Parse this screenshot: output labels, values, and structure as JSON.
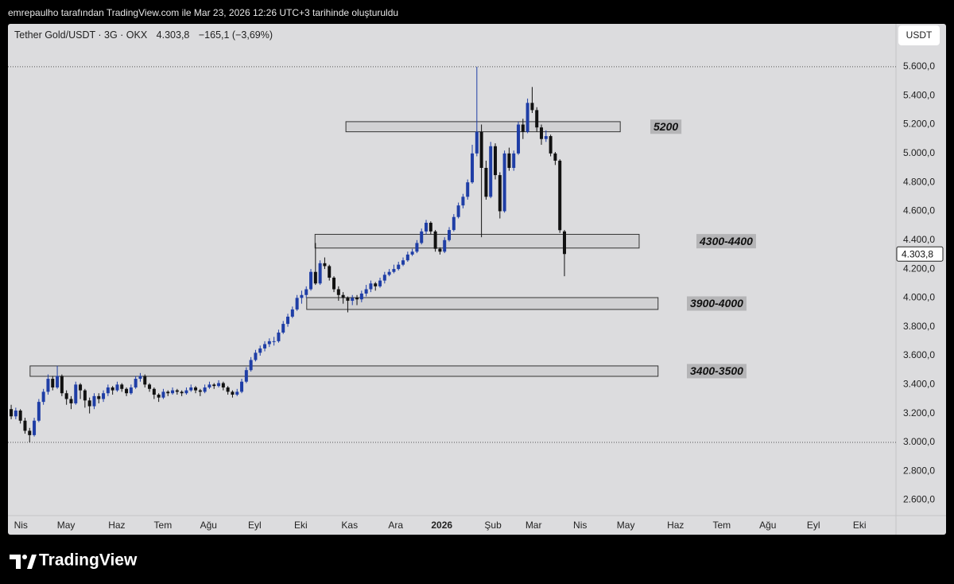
{
  "header": "emrepaulho tarafından TradingView.com ile Mar 23, 2026 12:26 UTC+3 tarihinde oluşturuldu",
  "brand": "TradingView",
  "chart_data": {
    "type": "candlestick",
    "title": "Tether Gold/USDT · 3G · OKX",
    "last_label": "4.303,8",
    "change_label": "−165,1 (−3,69%)",
    "currency": "USDT",
    "up_color": "#1f3ea6",
    "down_color": "#111111",
    "xlim": [
      -0.7,
      191.9
    ],
    "ylim": [
      2493,
      5897
    ],
    "yticks": [
      {
        "value": 2600,
        "label": "2.600,0"
      },
      {
        "value": 2800,
        "label": "2.800,0"
      },
      {
        "value": 3000,
        "label": "3.000,0"
      },
      {
        "value": 3200,
        "label": "3.200,0"
      },
      {
        "value": 3400,
        "label": "3.400,0"
      },
      {
        "value": 3600,
        "label": "3.600,0"
      },
      {
        "value": 3800,
        "label": "3.800,0"
      },
      {
        "value": 4000,
        "label": "4.000,0"
      },
      {
        "value": 4200,
        "label": "4.200,0"
      },
      {
        "value": 4400,
        "label": "4.400,0"
      },
      {
        "value": 4600,
        "label": "4.600,0"
      },
      {
        "value": 4800,
        "label": "4.800,0"
      },
      {
        "value": 5000,
        "label": "5.000,0"
      },
      {
        "value": 5200,
        "label": "5.200,0"
      },
      {
        "value": 5400,
        "label": "5.400,0"
      },
      {
        "value": 5600,
        "label": "5.600,0"
      }
    ],
    "xticks": [
      {
        "value": 2.1,
        "label": "Nis"
      },
      {
        "value": 11.9,
        "label": "May"
      },
      {
        "value": 22.9,
        "label": "Haz"
      },
      {
        "value": 32.9,
        "label": "Tem"
      },
      {
        "value": 42.8,
        "label": "Ağu"
      },
      {
        "value": 52.8,
        "label": "Eyl"
      },
      {
        "value": 62.8,
        "label": "Eki"
      },
      {
        "value": 73.4,
        "label": "Kas"
      },
      {
        "value": 83.4,
        "label": "Ara"
      },
      {
        "value": 93.4,
        "label": "2026"
      },
      {
        "value": 104.5,
        "label": "Şub"
      },
      {
        "value": 113.3,
        "label": "Mar"
      },
      {
        "value": 123.4,
        "label": "Nis"
      },
      {
        "value": 133.3,
        "label": "May"
      },
      {
        "value": 144.1,
        "label": "Haz"
      },
      {
        "value": 154.1,
        "label": "Tem"
      },
      {
        "value": 164.1,
        "label": "Ağu"
      },
      {
        "value": 174,
        "label": "Eyl"
      },
      {
        "value": 184,
        "label": "Eki"
      }
    ],
    "zones": [
      {
        "label": "5200",
        "top": 5220,
        "bottom": 5150,
        "start": 72.6,
        "end": 132.1
      },
      {
        "label": "4300-4400",
        "top": 4440,
        "bottom": 4345,
        "start": 65.9,
        "end": 136.2
      },
      {
        "label": "3900-4000",
        "top": 4002,
        "bottom": 3920,
        "start": 64.1,
        "end": 140.3
      },
      {
        "label": "3400-3500",
        "top": 3529,
        "bottom": 3457,
        "start": 4.1,
        "end": 140.3
      }
    ],
    "candles": [
      [
        3230,
        3260,
        3160,
        3180
      ],
      [
        3180,
        3240,
        3160,
        3220
      ],
      [
        3220,
        3230,
        3130,
        3150
      ],
      [
        3150,
        3170,
        3060,
        3080
      ],
      [
        3080,
        3100,
        3000,
        3050
      ],
      [
        3050,
        3170,
        3040,
        3150
      ],
      [
        3150,
        3300,
        3140,
        3280
      ],
      [
        3280,
        3370,
        3260,
        3350
      ],
      [
        3350,
        3470,
        3330,
        3440
      ],
      [
        3440,
        3460,
        3360,
        3380
      ],
      [
        3380,
        3530,
        3370,
        3460
      ],
      [
        3460,
        3470,
        3320,
        3340
      ],
      [
        3340,
        3360,
        3260,
        3300
      ],
      [
        3300,
        3320,
        3230,
        3270
      ],
      [
        3270,
        3420,
        3260,
        3400
      ],
      [
        3400,
        3410,
        3300,
        3360
      ],
      [
        3360,
        3370,
        3240,
        3290
      ],
      [
        3290,
        3310,
        3200,
        3250
      ],
      [
        3250,
        3340,
        3230,
        3320
      ],
      [
        3320,
        3340,
        3270,
        3300
      ],
      [
        3300,
        3360,
        3280,
        3340
      ],
      [
        3340,
        3400,
        3320,
        3380
      ],
      [
        3380,
        3390,
        3330,
        3360
      ],
      [
        3360,
        3420,
        3350,
        3400
      ],
      [
        3400,
        3410,
        3350,
        3370
      ],
      [
        3370,
        3380,
        3320,
        3340
      ],
      [
        3340,
        3400,
        3330,
        3380
      ],
      [
        3380,
        3460,
        3370,
        3440
      ],
      [
        3440,
        3480,
        3420,
        3460
      ],
      [
        3460,
        3470,
        3380,
        3400
      ],
      [
        3400,
        3410,
        3350,
        3370
      ],
      [
        3370,
        3380,
        3300,
        3330
      ],
      [
        3330,
        3340,
        3280,
        3310
      ],
      [
        3310,
        3370,
        3300,
        3350
      ],
      [
        3350,
        3360,
        3320,
        3340
      ],
      [
        3340,
        3380,
        3330,
        3360
      ],
      [
        3360,
        3370,
        3330,
        3350
      ],
      [
        3350,
        3360,
        3320,
        3340
      ],
      [
        3340,
        3380,
        3330,
        3360
      ],
      [
        3360,
        3400,
        3350,
        3380
      ],
      [
        3380,
        3390,
        3340,
        3360
      ],
      [
        3360,
        3370,
        3320,
        3350
      ],
      [
        3350,
        3400,
        3340,
        3380
      ],
      [
        3380,
        3420,
        3370,
        3400
      ],
      [
        3400,
        3410,
        3370,
        3390
      ],
      [
        3390,
        3430,
        3380,
        3410
      ],
      [
        3410,
        3420,
        3360,
        3380
      ],
      [
        3380,
        3390,
        3330,
        3350
      ],
      [
        3350,
        3360,
        3310,
        3330
      ],
      [
        3330,
        3370,
        3320,
        3350
      ],
      [
        3350,
        3440,
        3340,
        3420
      ],
      [
        3420,
        3520,
        3410,
        3500
      ],
      [
        3500,
        3590,
        3490,
        3570
      ],
      [
        3570,
        3640,
        3560,
        3620
      ],
      [
        3620,
        3670,
        3600,
        3650
      ],
      [
        3650,
        3700,
        3630,
        3680
      ],
      [
        3680,
        3720,
        3660,
        3700
      ],
      [
        3700,
        3730,
        3670,
        3700
      ],
      [
        3700,
        3780,
        3690,
        3760
      ],
      [
        3760,
        3840,
        3750,
        3820
      ],
      [
        3820,
        3890,
        3800,
        3870
      ],
      [
        3870,
        3940,
        3860,
        3920
      ],
      [
        3920,
        4020,
        3910,
        4000
      ],
      [
        4000,
        4050,
        3960,
        4020
      ],
      [
        4020,
        4080,
        4000,
        4060
      ],
      [
        4060,
        4200,
        4050,
        4180
      ],
      [
        4180,
        4380,
        4090,
        4100
      ],
      [
        4100,
        4260,
        4090,
        4240
      ],
      [
        4240,
        4280,
        4200,
        4220
      ],
      [
        4220,
        4230,
        4120,
        4140
      ],
      [
        4140,
        4150,
        4040,
        4060
      ],
      [
        4060,
        4080,
        3980,
        4020
      ],
      [
        4020,
        4040,
        3960,
        4000
      ],
      [
        4000,
        4010,
        3900,
        3980
      ],
      [
        3980,
        4020,
        3950,
        4000
      ],
      [
        4000,
        4020,
        3950,
        3990
      ],
      [
        3990,
        4050,
        3970,
        4030
      ],
      [
        4030,
        4090,
        4010,
        4060
      ],
      [
        4060,
        4120,
        4040,
        4100
      ],
      [
        4100,
        4110,
        4050,
        4080
      ],
      [
        4080,
        4140,
        4070,
        4120
      ],
      [
        4120,
        4180,
        4100,
        4160
      ],
      [
        4160,
        4200,
        4150,
        4180
      ],
      [
        4180,
        4230,
        4170,
        4200
      ],
      [
        4200,
        4250,
        4190,
        4230
      ],
      [
        4230,
        4280,
        4220,
        4260
      ],
      [
        4260,
        4320,
        4250,
        4300
      ],
      [
        4300,
        4340,
        4290,
        4320
      ],
      [
        4320,
        4400,
        4310,
        4380
      ],
      [
        4380,
        4480,
        4370,
        4460
      ],
      [
        4460,
        4540,
        4440,
        4520
      ],
      [
        4520,
        4530,
        4440,
        4460
      ],
      [
        4460,
        4470,
        4320,
        4340
      ],
      [
        4340,
        4350,
        4300,
        4320
      ],
      [
        4320,
        4420,
        4310,
        4400
      ],
      [
        4400,
        4490,
        4390,
        4470
      ],
      [
        4470,
        4580,
        4460,
        4560
      ],
      [
        4560,
        4660,
        4550,
        4640
      ],
      [
        4640,
        4720,
        4620,
        4700
      ],
      [
        4700,
        4820,
        4680,
        4800
      ],
      [
        4800,
        5060,
        4790,
        5000
      ],
      [
        5000,
        5600,
        4980,
        5150
      ],
      [
        5150,
        5200,
        4420,
        4900
      ],
      [
        4900,
        4950,
        4680,
        4700
      ],
      [
        4700,
        5080,
        4690,
        5050
      ],
      [
        5050,
        5070,
        4820,
        4850
      ],
      [
        4850,
        4870,
        4550,
        4600
      ],
      [
        4600,
        5020,
        4590,
        5000
      ],
      [
        5000,
        5040,
        4880,
        4900
      ],
      [
        4900,
        5020,
        4880,
        5000
      ],
      [
        5000,
        5220,
        4990,
        5200
      ],
      [
        5200,
        5240,
        5100,
        5150
      ],
      [
        5150,
        5380,
        5140,
        5350
      ],
      [
        5350,
        5460,
        5280,
        5300
      ],
      [
        5300,
        5320,
        5150,
        5180
      ],
      [
        5180,
        5200,
        5060,
        5100
      ],
      [
        5100,
        5160,
        5080,
        5120
      ],
      [
        5120,
        5130,
        4980,
        5000
      ],
      [
        5000,
        5010,
        4920,
        4950
      ],
      [
        4950,
        4960,
        4450,
        4468.9
      ],
      [
        4460,
        4470,
        4150,
        4303.8
      ]
    ]
  }
}
